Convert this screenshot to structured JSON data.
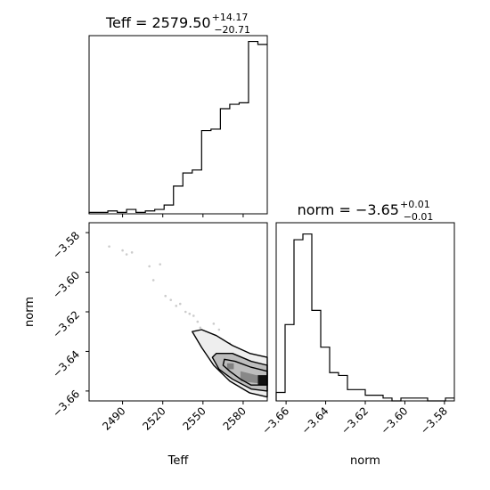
{
  "chart_data": [
    {
      "type": "histogram",
      "panel": "Teff marginal",
      "title": {
        "prefix": "Teff = ",
        "value": "2579.50",
        "upper": "+14.17",
        "lower": "−20.71"
      },
      "xlim": [
        2465,
        2598
      ],
      "bins_edges": [
        2465,
        2472,
        2479,
        2486,
        2493,
        2500,
        2507,
        2514,
        2521,
        2528,
        2535,
        2542,
        2549,
        2556,
        2563,
        2570,
        2577,
        2584,
        2591,
        2598
      ],
      "counts": [
        1,
        1,
        2,
        1,
        3,
        1,
        2,
        3,
        6,
        19,
        28,
        30,
        57,
        58,
        72,
        75,
        76,
        118,
        116
      ],
      "ylim": [
        0,
        122
      ]
    },
    {
      "type": "histogram",
      "panel": "norm marginal",
      "title": {
        "prefix": "norm = ",
        "value": "−3.65",
        "upper": "+0.01",
        "lower": "−0.01"
      },
      "xlim": [
        -3.665,
        -3.575
      ],
      "bins_edges": [
        -3.665,
        -3.6605,
        -3.656,
        -3.6515,
        -3.647,
        -3.6425,
        -3.638,
        -3.6335,
        -3.629,
        -3.6245,
        -3.62,
        -3.6155,
        -3.611,
        -3.6065,
        -3.602,
        -3.5975,
        -3.593,
        -3.5885,
        -3.584,
        -3.5795,
        -3.575
      ],
      "counts": [
        3,
        27,
        57,
        59,
        32,
        19,
        10,
        9,
        4,
        4,
        2,
        2,
        1,
        0,
        1,
        1,
        1,
        0,
        0,
        1
      ],
      "ylim": [
        0,
        63
      ],
      "xticks": [
        -3.66,
        -3.64,
        -3.62,
        -3.6,
        -3.58
      ],
      "xtick_labels": [
        "−3.66",
        "−3.64",
        "−3.62",
        "−3.60",
        "−3.58"
      ],
      "xlabel": "norm"
    },
    {
      "type": "scatter",
      "panel": "Teff vs norm 2D",
      "xlim": [
        2465,
        2598
      ],
      "ylim": [
        -3.665,
        -3.575
      ],
      "xticks": [
        2490,
        2520,
        2550,
        2580
      ],
      "xtick_labels": [
        "2490",
        "2520",
        "2550",
        "2580"
      ],
      "yticks": [
        -3.58,
        -3.6,
        -3.62,
        -3.64,
        -3.66
      ],
      "ytick_labels": [
        "−3.58",
        "−3.60",
        "−3.62",
        "−3.64",
        "−3.66"
      ],
      "xlabel": "Teff",
      "ylabel": "norm",
      "points": [
        [
          2480,
          -3.587
        ],
        [
          2490,
          -3.589
        ],
        [
          2493,
          -3.591
        ],
        [
          2497,
          -3.59
        ],
        [
          2510,
          -3.597
        ],
        [
          2513,
          -3.604
        ],
        [
          2518,
          -3.596
        ],
        [
          2522,
          -3.612
        ],
        [
          2526,
          -3.614
        ],
        [
          2530,
          -3.617
        ],
        [
          2533,
          -3.616
        ],
        [
          2537,
          -3.62
        ],
        [
          2540,
          -3.621
        ],
        [
          2543,
          -3.622
        ],
        [
          2546,
          -3.625
        ],
        [
          2548,
          -3.628
        ],
        [
          2552,
          -3.631
        ],
        [
          2556,
          -3.637
        ],
        [
          2560,
          -3.641
        ],
        [
          2564,
          -3.645
        ],
        [
          2566,
          -3.639
        ],
        [
          2570,
          -3.636
        ],
        [
          2573,
          -3.641
        ],
        [
          2558,
          -3.626
        ],
        [
          2562,
          -3.629
        ]
      ],
      "contours": [
        {
          "level": "outer",
          "points": [
            [
              2542,
              -3.63
            ],
            [
              2549,
              -3.629
            ],
            [
              2560,
              -3.632
            ],
            [
              2572,
              -3.637
            ],
            [
              2585,
              -3.641
            ],
            [
              2598,
              -3.643
            ],
            [
              2598,
              -3.663
            ],
            [
              2585,
              -3.661
            ],
            [
              2570,
              -3.655
            ],
            [
              2558,
              -3.647
            ],
            [
              2549,
              -3.638
            ]
          ]
        },
        {
          "level": "middle",
          "points": [
            [
              2560,
              -3.641
            ],
            [
              2572,
              -3.641
            ],
            [
              2586,
              -3.645
            ],
            [
              2598,
              -3.647
            ],
            [
              2598,
              -3.66
            ],
            [
              2586,
              -3.659
            ],
            [
              2572,
              -3.654
            ],
            [
              2562,
              -3.649
            ],
            [
              2557,
              -3.643
            ]
          ]
        },
        {
          "level": "inner",
          "points": [
            [
              2566,
              -3.644
            ],
            [
              2574,
              -3.645
            ],
            [
              2586,
              -3.648
            ],
            [
              2598,
              -3.65
            ],
            [
              2598,
              -3.657
            ],
            [
              2586,
              -3.657
            ],
            [
              2578,
              -3.654
            ],
            [
              2570,
              -3.65
            ],
            [
              2565,
              -3.647
            ]
          ]
        }
      ],
      "fills": [
        {
          "points": [
            [
              2578,
              -3.65
            ],
            [
              2590,
              -3.652
            ],
            [
              2598,
              -3.652
            ],
            [
              2598,
              -3.657
            ],
            [
              2590,
              -3.656
            ],
            [
              2578,
              -3.655
            ]
          ],
          "color": "#888888"
        },
        {
          "points": [
            [
              2568,
              -3.646
            ],
            [
              2573,
              -3.646
            ],
            [
              2573,
              -3.649
            ],
            [
              2568,
              -3.649
            ]
          ],
          "color": "#808080"
        },
        {
          "points": [
            [
              2591,
              -3.652
            ],
            [
              2598,
              -3.652
            ],
            [
              2598,
              -3.657
            ],
            [
              2591,
              -3.657
            ]
          ],
          "color": "#111111"
        }
      ]
    }
  ],
  "colors": {
    "line": "#000000",
    "scatter": "#cccccc",
    "fill_mid": "#bdbdbd",
    "fill_dark": "#888888",
    "fill_core": "#111111"
  }
}
